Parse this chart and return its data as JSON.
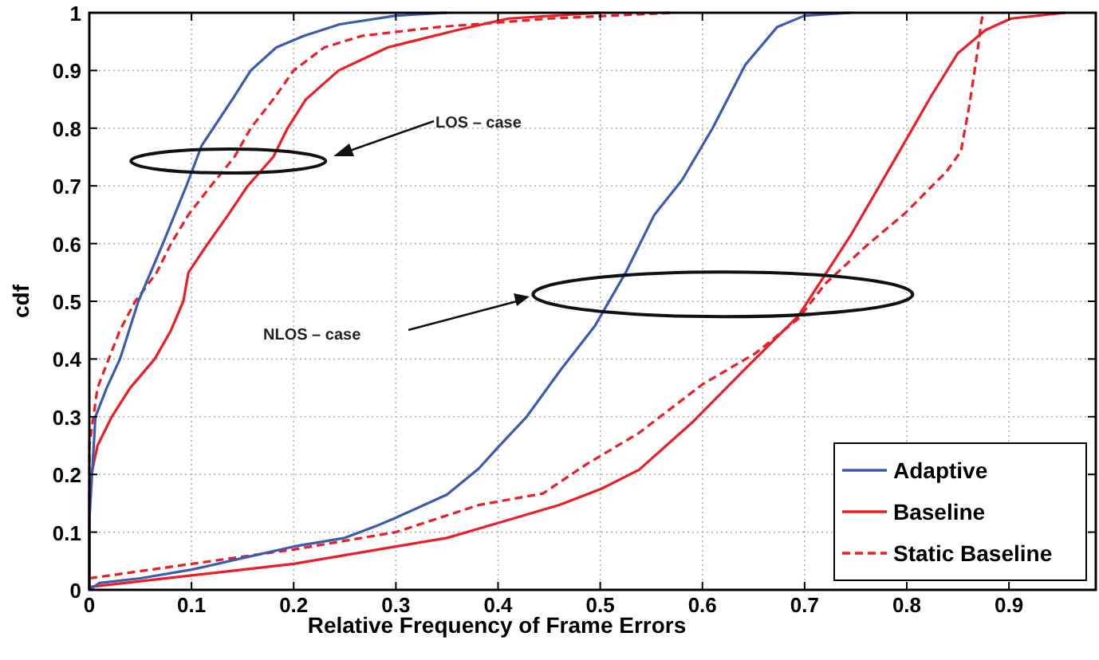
{
  "chart_data": {
    "type": "line",
    "xlabel": "Relative Frequency of Frame Errors",
    "ylabel": "cdf",
    "xlim": [
      0,
      0.985
    ],
    "ylim": [
      0,
      1
    ],
    "xticks": [
      0,
      0.1,
      0.2,
      0.3,
      0.4,
      0.5,
      0.6,
      0.7,
      0.8,
      0.9
    ],
    "yticks": [
      0,
      0.1,
      0.2,
      0.3,
      0.4,
      0.5,
      0.6,
      0.7,
      0.8,
      0.9,
      1
    ],
    "grid": true,
    "legend": "bottom right",
    "annotations": [
      "LOS – case",
      "NLOS – case"
    ],
    "series": [
      {
        "name": "Adaptive",
        "color": "#3a5bb0",
        "line_style": "solid",
        "x": [
          0,
          0,
          0.006,
          0.017,
          0.03,
          0.048,
          0.072,
          0.095,
          0.11,
          0.14,
          0.158,
          0.183,
          0.21,
          0.245,
          0.3,
          0.35
        ],
        "values": [
          0,
          0.12,
          0.3,
          0.35,
          0.4,
          0.5,
          0.6,
          0.7,
          0.77,
          0.85,
          0.9,
          0.94,
          0.96,
          0.98,
          0.995,
          1
        ]
      },
      {
        "name": "Baseline",
        "color": "#ee1c24",
        "line_style": "solid",
        "x": [
          0,
          0,
          0.002,
          0.008,
          0.022,
          0.04,
          0.064,
          0.08,
          0.092,
          0.097,
          0.116,
          0.136,
          0.155,
          0.18,
          0.194,
          0.212,
          0.244,
          0.292,
          0.36,
          0.41,
          0.5
        ],
        "values": [
          0,
          0.17,
          0.2,
          0.25,
          0.3,
          0.35,
          0.4,
          0.45,
          0.5,
          0.55,
          0.6,
          0.65,
          0.7,
          0.75,
          0.8,
          0.85,
          0.9,
          0.94,
          0.97,
          0.99,
          1
        ]
      },
      {
        "name": "Static Baseline",
        "color": "#ee1c24",
        "line_style": "dashed",
        "x": [
          0,
          0,
          0.008,
          0.03,
          0.045,
          0.066,
          0.08,
          0.097,
          0.119,
          0.142,
          0.158,
          0.18,
          0.2,
          0.23,
          0.267,
          0.34,
          0.45,
          0.57
        ],
        "values": [
          0,
          0.25,
          0.35,
          0.45,
          0.5,
          0.55,
          0.6,
          0.65,
          0.7,
          0.75,
          0.8,
          0.85,
          0.9,
          0.94,
          0.96,
          0.975,
          0.99,
          1
        ]
      },
      {
        "color": "#3a5bb0",
        "line_style": "solid",
        "x": [
          0,
          0.01,
          0.05,
          0.1,
          0.15,
          0.2,
          0.25,
          0.28,
          0.3,
          0.35,
          0.381,
          0.4,
          0.428,
          0.462,
          0.495,
          0.525,
          0.553,
          0.58,
          0.61,
          0.642,
          0.673,
          0.7,
          0.745
        ],
        "values": [
          0,
          0.012,
          0.02,
          0.035,
          0.055,
          0.075,
          0.09,
          0.11,
          0.125,
          0.165,
          0.21,
          0.247,
          0.3,
          0.383,
          0.458,
          0.55,
          0.65,
          0.71,
          0.8,
          0.91,
          0.975,
          0.995,
          1
        ]
      },
      {
        "color": "#ee1c24",
        "line_style": "solid",
        "x": [
          0,
          0.1,
          0.2,
          0.3,
          0.35,
          0.381,
          0.46,
          0.501,
          0.538,
          0.59,
          0.642,
          0.694,
          0.745,
          0.788,
          0.824,
          0.85,
          0.877,
          0.902,
          0.955
        ],
        "values": [
          0.005,
          0.025,
          0.045,
          0.075,
          0.09,
          0.106,
          0.147,
          0.175,
          0.208,
          0.29,
          0.383,
          0.475,
          0.614,
          0.745,
          0.856,
          0.93,
          0.97,
          0.99,
          1
        ]
      },
      {
        "color": "#ee1c24",
        "line_style": "dashed",
        "x": [
          0,
          0.1,
          0.2,
          0.3,
          0.381,
          0.444,
          0.486,
          0.538,
          0.6,
          0.652,
          0.694,
          0.72,
          0.761,
          0.798,
          0.839,
          0.853,
          0.861,
          0.869,
          0.873,
          0.875
        ],
        "values": [
          0.02,
          0.045,
          0.07,
          0.1,
          0.147,
          0.167,
          0.217,
          0.272,
          0.356,
          0.41,
          0.47,
          0.53,
          0.597,
          0.652,
          0.725,
          0.76,
          0.837,
          0.93,
          0.985,
          1
        ]
      }
    ]
  }
}
